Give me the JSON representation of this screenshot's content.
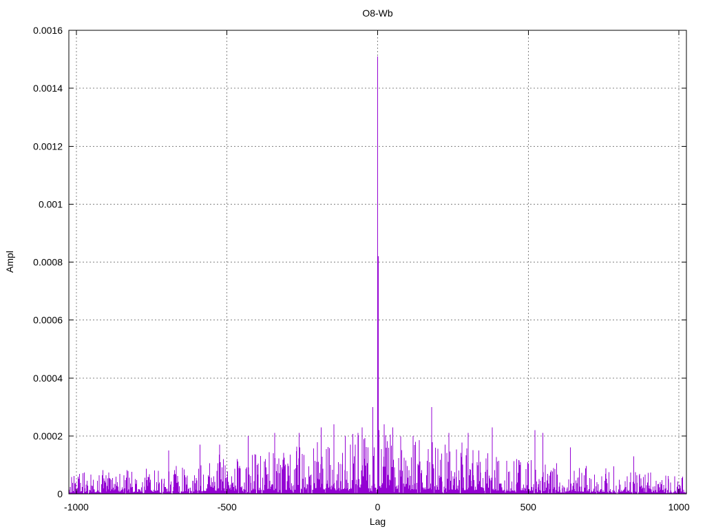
{
  "page": {
    "background": "#ffffff"
  },
  "chart_data": {
    "type": "impulse",
    "title": "O8-Wb",
    "xlabel": "Lag",
    "ylabel": "Ampl",
    "xlim": [
      -1025,
      1025
    ],
    "ylim": [
      0,
      0.0016
    ],
    "x_ticks": [
      {
        "value": -1000,
        "label": "-1000"
      },
      {
        "value": -500,
        "label": "-500"
      },
      {
        "value": 0,
        "label": "0"
      },
      {
        "value": 500,
        "label": "500"
      },
      {
        "value": 1000,
        "label": "1000"
      }
    ],
    "y_ticks": [
      {
        "value": 0.0,
        "label": "0"
      },
      {
        "value": 0.0002,
        "label": "0.0002"
      },
      {
        "value": 0.0004,
        "label": "0.0004"
      },
      {
        "value": 0.0006,
        "label": "0.0006"
      },
      {
        "value": 0.0008,
        "label": "0.0008"
      },
      {
        "value": 0.001,
        "label": "0.001"
      },
      {
        "value": 0.0012,
        "label": "0.0012"
      },
      {
        "value": 0.0014,
        "label": "0.0014"
      },
      {
        "value": 0.0016,
        "label": "0.0016"
      }
    ],
    "grid": true,
    "legend": "none",
    "series_color": "#9400d3",
    "axis_color": "#000000",
    "grid_color": "#808080",
    "main_peak": {
      "lag": 0,
      "ampl": 0.00151
    },
    "secondary_peak": {
      "lag": 2,
      "ampl": 0.00082
    },
    "notable_spikes": [
      {
        "lag": -694,
        "ampl": 0.00015
      },
      {
        "lag": -590,
        "ampl": 0.00017
      },
      {
        "lag": -525,
        "ampl": 0.00017
      },
      {
        "lag": -430,
        "ampl": 0.0002
      },
      {
        "lag": -342,
        "ampl": 0.00021
      },
      {
        "lag": -260,
        "ampl": 0.00021
      },
      {
        "lag": -187,
        "ampl": 0.00023
      },
      {
        "lag": -145,
        "ampl": 0.00024
      },
      {
        "lag": -107,
        "ampl": 0.0002
      },
      {
        "lag": -65,
        "ampl": 0.00021
      },
      {
        "lag": -16,
        "ampl": 0.0003
      },
      {
        "lag": 22,
        "ampl": 0.00024
      },
      {
        "lag": 50,
        "ampl": 0.00023
      },
      {
        "lag": 118,
        "ampl": 0.0002
      },
      {
        "lag": 179,
        "ampl": 0.0003
      },
      {
        "lag": 236,
        "ampl": 0.00021
      },
      {
        "lag": 300,
        "ampl": 0.00021
      },
      {
        "lag": 380,
        "ampl": 0.00023
      },
      {
        "lag": 522,
        "ampl": 0.00022
      },
      {
        "lag": 548,
        "ampl": 0.00021
      },
      {
        "lag": 640,
        "ampl": 0.00016
      },
      {
        "lag": 850,
        "ampl": 0.00013
      }
    ],
    "noise_model": {
      "seed": 7,
      "lag_min": -1024,
      "lag_max": 1024,
      "lag_step": 2,
      "edge_typical_ampl": 5.5e-05,
      "center_typical_ampl": 0.00018,
      "envelope_exponent": 1.6,
      "tall_spike_probability": 0.03,
      "gap_probability": 0.15
    }
  }
}
